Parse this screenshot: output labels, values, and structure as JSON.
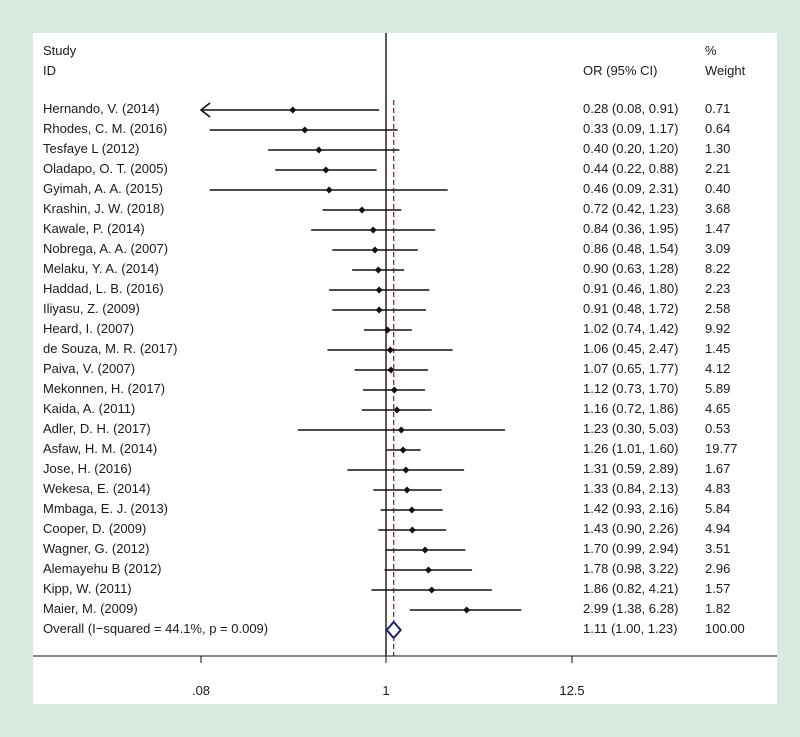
{
  "headers": {
    "study": "Study",
    "id": "ID",
    "or_ci": "OR (95% CI)",
    "pct": "%",
    "weight": "Weight"
  },
  "x_ticks": [
    ".08",
    "1",
    "12.5"
  ],
  "colors": {
    "background": "#d8ebde",
    "panel": "#ffffff",
    "ref_line": "#8b1a3a",
    "diamond": "#1f1f7a",
    "mark": "#111111"
  },
  "chart_data": {
    "type": "forest",
    "title": "",
    "xlabel": "",
    "x_scale": "log",
    "x_ticks": [
      0.08,
      1,
      12.5
    ],
    "null_line": 1,
    "summary_line": 1.11,
    "studies": [
      {
        "name": "Hernando, V. (2014)",
        "or": 0.28,
        "lo": 0.08,
        "hi": 0.91,
        "ci_text": "0.28 (0.08, 0.91)",
        "weight": "0.71",
        "arrow_left": true
      },
      {
        "name": "Rhodes, C. M. (2016)",
        "or": 0.33,
        "lo": 0.09,
        "hi": 1.17,
        "ci_text": "0.33 (0.09, 1.17)",
        "weight": "0.64"
      },
      {
        "name": "Tesfaye L (2012)",
        "or": 0.4,
        "lo": 0.2,
        "hi": 1.2,
        "ci_text": "0.40 (0.20, 1.20)",
        "weight": "1.30"
      },
      {
        "name": "Oladapo, O. T. (2005)",
        "or": 0.44,
        "lo": 0.22,
        "hi": 0.88,
        "ci_text": "0.44 (0.22, 0.88)",
        "weight": "2.21"
      },
      {
        "name": "Gyimah, A. A. (2015)",
        "or": 0.46,
        "lo": 0.09,
        "hi": 2.31,
        "ci_text": "0.46 (0.09, 2.31)",
        "weight": "0.40"
      },
      {
        "name": "Krashin, J. W. (2018)",
        "or": 0.72,
        "lo": 0.42,
        "hi": 1.23,
        "ci_text": "0.72 (0.42, 1.23)",
        "weight": "3.68"
      },
      {
        "name": "Kawale, P. (2014)",
        "or": 0.84,
        "lo": 0.36,
        "hi": 1.95,
        "ci_text": "0.84 (0.36, 1.95)",
        "weight": "1.47"
      },
      {
        "name": "Nobrega, A. A. (2007)",
        "or": 0.86,
        "lo": 0.48,
        "hi": 1.54,
        "ci_text": "0.86 (0.48, 1.54)",
        "weight": "3.09"
      },
      {
        "name": "Melaku, Y. A. (2014)",
        "or": 0.9,
        "lo": 0.63,
        "hi": 1.28,
        "ci_text": "0.90 (0.63, 1.28)",
        "weight": "8.22"
      },
      {
        "name": "Haddad, L. B. (2016)",
        "or": 0.91,
        "lo": 0.46,
        "hi": 1.8,
        "ci_text": "0.91 (0.46, 1.80)",
        "weight": "2.23"
      },
      {
        "name": "Iliyasu, Z. (2009)",
        "or": 0.91,
        "lo": 0.48,
        "hi": 1.72,
        "ci_text": "0.91 (0.48, 1.72)",
        "weight": "2.58"
      },
      {
        "name": "Heard, I. (2007)",
        "or": 1.02,
        "lo": 0.74,
        "hi": 1.42,
        "ci_text": "1.02 (0.74, 1.42)",
        "weight": "9.92"
      },
      {
        "name": "de Souza, M. R. (2017)",
        "or": 1.06,
        "lo": 0.45,
        "hi": 2.47,
        "ci_text": "1.06 (0.45, 2.47)",
        "weight": "1.45"
      },
      {
        "name": "Paiva, V. (2007)",
        "or": 1.07,
        "lo": 0.65,
        "hi": 1.77,
        "ci_text": "1.07 (0.65, 1.77)",
        "weight": "4.12"
      },
      {
        "name": "Mekonnen, H. (2017)",
        "or": 1.12,
        "lo": 0.73,
        "hi": 1.7,
        "ci_text": "1.12 (0.73, 1.70)",
        "weight": "5.89"
      },
      {
        "name": "Kaida, A. (2011)",
        "or": 1.16,
        "lo": 0.72,
        "hi": 1.86,
        "ci_text": "1.16 (0.72, 1.86)",
        "weight": "4.65"
      },
      {
        "name": "Adler, D. H. (2017)",
        "or": 1.23,
        "lo": 0.3,
        "hi": 5.03,
        "ci_text": "1.23 (0.30, 5.03)",
        "weight": "0.53"
      },
      {
        "name": "Asfaw, H. M. (2014)",
        "or": 1.26,
        "lo": 1.01,
        "hi": 1.6,
        "ci_text": "1.26 (1.01, 1.60)",
        "weight": "19.77"
      },
      {
        "name": "Jose, H. (2016)",
        "or": 1.31,
        "lo": 0.59,
        "hi": 2.89,
        "ci_text": "1.31 (0.59, 2.89)",
        "weight": "1.67"
      },
      {
        "name": "Wekesa, E. (2014)",
        "or": 1.33,
        "lo": 0.84,
        "hi": 2.13,
        "ci_text": "1.33 (0.84, 2.13)",
        "weight": "4.83"
      },
      {
        "name": "Mmbaga, E. J. (2013)",
        "or": 1.42,
        "lo": 0.93,
        "hi": 2.16,
        "ci_text": "1.42 (0.93, 2.16)",
        "weight": "5.84"
      },
      {
        "name": "Cooper, D. (2009)",
        "or": 1.43,
        "lo": 0.9,
        "hi": 2.26,
        "ci_text": "1.43 (0.90, 2.26)",
        "weight": "4.94"
      },
      {
        "name": "Wagner, G. (2012)",
        "or": 1.7,
        "lo": 0.99,
        "hi": 2.94,
        "ci_text": "1.70 (0.99, 2.94)",
        "weight": "3.51"
      },
      {
        "name": "Alemayehu B (2012)",
        "or": 1.78,
        "lo": 0.98,
        "hi": 3.22,
        "ci_text": "1.78 (0.98, 3.22)",
        "weight": "2.96"
      },
      {
        "name": "Kipp, W. (2011)",
        "or": 1.86,
        "lo": 0.82,
        "hi": 4.21,
        "ci_text": "1.86 (0.82, 4.21)",
        "weight": "1.57"
      },
      {
        "name": "Maier, M. (2009)",
        "or": 2.99,
        "lo": 1.38,
        "hi": 6.28,
        "ci_text": "2.99 (1.38, 6.28)",
        "weight": "1.82"
      }
    ],
    "overall": {
      "name": "Overall  (I−squared = 44.1%, p = 0.009)",
      "or": 1.11,
      "lo": 1.0,
      "hi": 1.23,
      "ci_text": "1.11 (1.00, 1.23)",
      "weight": "100.00"
    }
  }
}
